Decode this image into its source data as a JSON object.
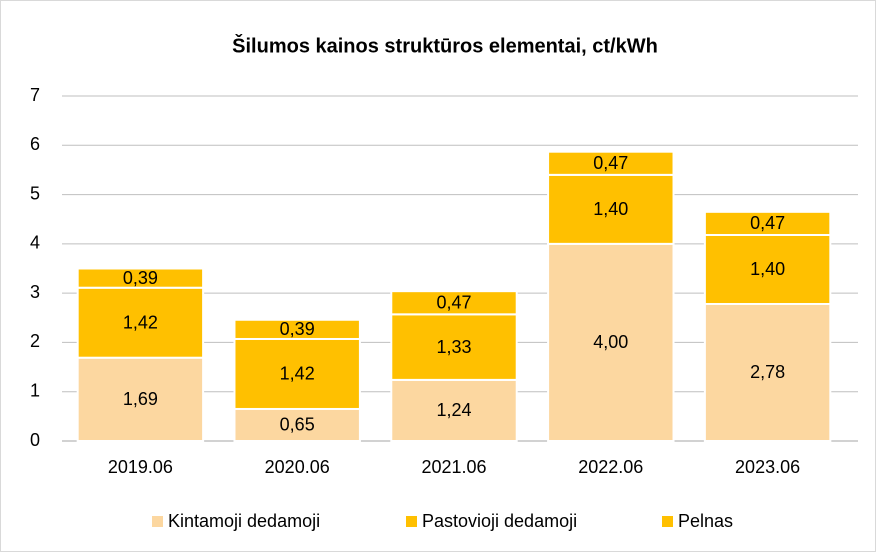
{
  "chart_data": {
    "type": "stacked_bar",
    "title": "Šilumos kainos struktūros elementai, ct/kWh",
    "categories": [
      "2019.06",
      "2020.06",
      "2021.06",
      "2022.06",
      "2023.06"
    ],
    "series": [
      {
        "name": "Kintamoji dedamoji",
        "color": "#fcd7a0",
        "values": [
          1.69,
          0.65,
          1.24,
          4.0,
          2.78
        ],
        "value_labels": [
          "1,69",
          "0,65",
          "1,24",
          "4,00",
          "2,78"
        ]
      },
      {
        "name": "Pastovioji dedamoji",
        "color": "#ffc000",
        "values": [
          1.42,
          1.42,
          1.33,
          1.4,
          1.4
        ],
        "value_labels": [
          "1,42",
          "1,42",
          "1,33",
          "1,40",
          "1,40"
        ]
      },
      {
        "name": "Pelnas",
        "color": "#ffc000",
        "values": [
          0.39,
          0.39,
          0.47,
          0.47,
          0.47
        ],
        "value_labels": [
          "0,39",
          "0,39",
          "0,47",
          "0,47",
          "0,47"
        ]
      }
    ],
    "ylim": [
      0,
      7
    ],
    "yticks": [
      0,
      1,
      2,
      3,
      4,
      5,
      6,
      7
    ],
    "grid": true,
    "legend": "bottom"
  }
}
